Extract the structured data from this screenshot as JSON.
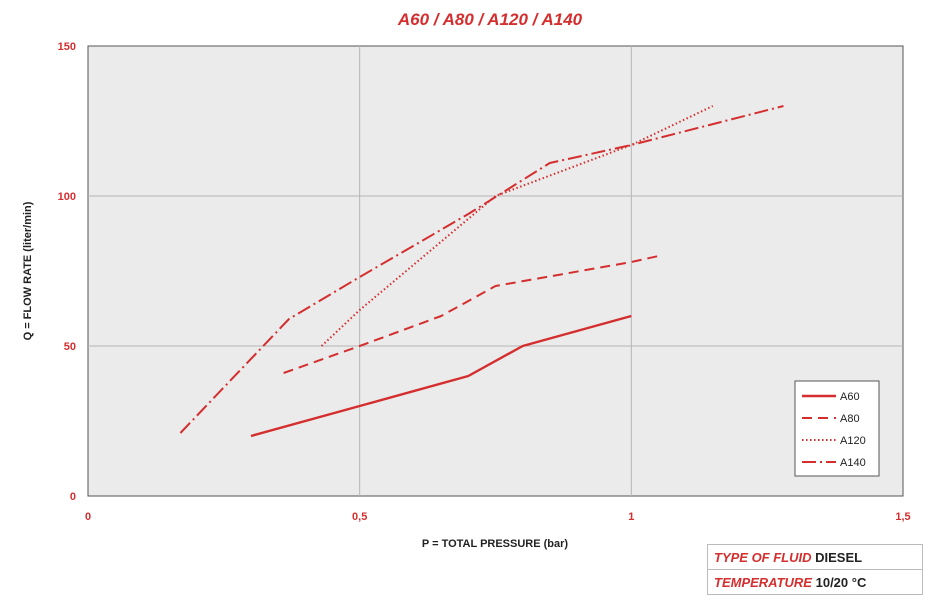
{
  "chart_data": {
    "type": "line",
    "title": "A60 / A80 / A120 / A140",
    "xlabel": "P = TOTAL PRESSURE (bar)",
    "ylabel": "Q = FLOW RATE (liter/min)",
    "xlim": [
      0,
      1.5
    ],
    "ylim": [
      0,
      150
    ],
    "x_ticks": [
      "0",
      "0,5",
      "1",
      "1,5"
    ],
    "y_ticks": [
      "0",
      "50",
      "100",
      "150"
    ],
    "grid": true,
    "legend_position": "bottom-right",
    "series": [
      {
        "name": "A60",
        "style": "solid",
        "x": [
          0.3,
          0.5,
          0.7,
          0.8,
          1.0
        ],
        "y": [
          20,
          30,
          40,
          50,
          60
        ]
      },
      {
        "name": "A80",
        "style": "dashed",
        "x": [
          0.36,
          0.5,
          0.65,
          0.75,
          1.0,
          1.05
        ],
        "y": [
          41,
          50,
          60,
          70,
          78,
          80
        ]
      },
      {
        "name": "A120",
        "style": "dotted",
        "x": [
          0.43,
          0.5,
          0.75,
          1.0,
          1.15
        ],
        "y": [
          50,
          62,
          100,
          117,
          130
        ]
      },
      {
        "name": "A140",
        "style": "dash-dot",
        "x": [
          0.17,
          0.37,
          0.5,
          0.7,
          0.85,
          1.0,
          1.28
        ],
        "y": [
          21,
          59,
          73,
          94,
          111,
          117,
          130
        ]
      }
    ],
    "colors": {
      "line": "#d42e2e",
      "plot_background": "#ebebeb",
      "grid": "#b5b5b5",
      "frame": "#555555"
    }
  },
  "info": {
    "fluid_label": "TYPE OF FLUID",
    "fluid_value": "DIESEL",
    "temp_label": "TEMPERATURE",
    "temp_value": "10/20 °C"
  }
}
